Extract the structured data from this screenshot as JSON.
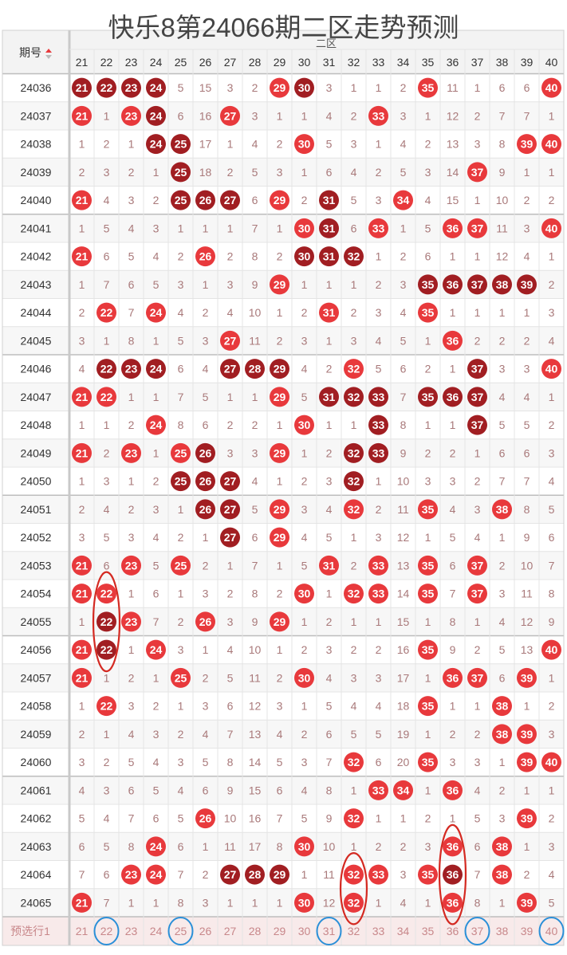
{
  "title": "快乐8第24066期二区走势预测",
  "zone_label": "二区",
  "header": {
    "period_label": "期号",
    "sort_icon": "sort-icon"
  },
  "colors": {
    "hit": "#e8393c",
    "repeat": "#a11e22",
    "miss_text": "#a9797a",
    "mark": "#d42a22",
    "pick": "#2a8fd8",
    "grid": "#e4e4e4"
  },
  "chart_data": {
    "type": "table",
    "columns": [
      21,
      22,
      23,
      24,
      25,
      26,
      27,
      28,
      29,
      30,
      31,
      32,
      33,
      34,
      35,
      36,
      37,
      38,
      39,
      40
    ],
    "rows": [
      {
        "period": "24036",
        "cells": [
          21,
          22,
          23,
          24,
          5,
          15,
          3,
          2,
          29,
          30,
          3,
          1,
          1,
          2,
          35,
          11,
          1,
          6,
          6,
          40
        ],
        "repeat": [
          21,
          22,
          23,
          24,
          30
        ]
      },
      {
        "period": "24037",
        "cells": [
          21,
          1,
          23,
          24,
          6,
          16,
          27,
          3,
          1,
          1,
          4,
          2,
          33,
          3,
          1,
          12,
          2,
          7,
          7,
          1
        ],
        "repeat": [
          24
        ]
      },
      {
        "period": "24038",
        "cells": [
          1,
          2,
          1,
          24,
          25,
          17,
          1,
          4,
          2,
          30,
          5,
          3,
          1,
          4,
          2,
          13,
          3,
          8,
          39,
          40
        ],
        "repeat": [
          24,
          25
        ]
      },
      {
        "period": "24039",
        "cells": [
          2,
          3,
          2,
          1,
          25,
          18,
          2,
          5,
          3,
          1,
          6,
          4,
          2,
          5,
          3,
          14,
          37,
          9,
          1,
          1
        ],
        "repeat": [
          25
        ]
      },
      {
        "period": "24040",
        "cells": [
          21,
          4,
          3,
          2,
          25,
          26,
          27,
          6,
          29,
          2,
          31,
          5,
          3,
          34,
          4,
          15,
          1,
          10,
          2,
          2
        ],
        "repeat": [
          25,
          26,
          27,
          31
        ]
      },
      {
        "period": "24041",
        "cells": [
          1,
          5,
          4,
          3,
          1,
          1,
          1,
          7,
          1,
          30,
          31,
          6,
          33,
          1,
          5,
          36,
          37,
          11,
          3,
          40
        ],
        "repeat": [
          31
        ]
      },
      {
        "period": "24042",
        "cells": [
          21,
          6,
          5,
          4,
          2,
          26,
          2,
          8,
          2,
          30,
          31,
          32,
          1,
          2,
          6,
          1,
          1,
          12,
          4,
          1
        ],
        "repeat": [
          30,
          31,
          32
        ]
      },
      {
        "period": "24043",
        "cells": [
          1,
          7,
          6,
          5,
          3,
          1,
          3,
          9,
          29,
          1,
          1,
          1,
          2,
          3,
          35,
          36,
          37,
          38,
          39,
          2
        ],
        "repeat": [
          35,
          36,
          37,
          38,
          39
        ]
      },
      {
        "period": "24044",
        "cells": [
          2,
          22,
          7,
          24,
          4,
          2,
          4,
          10,
          1,
          2,
          31,
          2,
          3,
          4,
          35,
          1,
          1,
          1,
          1,
          3
        ],
        "repeat": []
      },
      {
        "period": "24045",
        "cells": [
          3,
          1,
          8,
          1,
          5,
          3,
          27,
          11,
          2,
          3,
          1,
          3,
          4,
          5,
          1,
          36,
          2,
          2,
          2,
          4
        ],
        "repeat": []
      },
      {
        "period": "24046",
        "cells": [
          4,
          22,
          23,
          24,
          6,
          4,
          27,
          28,
          29,
          4,
          2,
          32,
          5,
          6,
          2,
          1,
          37,
          3,
          3,
          40
        ],
        "repeat": [
          22,
          23,
          24,
          27,
          28,
          29,
          37
        ]
      },
      {
        "period": "24047",
        "cells": [
          21,
          22,
          1,
          1,
          7,
          5,
          1,
          1,
          29,
          5,
          31,
          32,
          33,
          7,
          35,
          36,
          37,
          4,
          4,
          1
        ],
        "repeat": [
          31,
          32,
          33,
          35,
          36,
          37
        ]
      },
      {
        "period": "24048",
        "cells": [
          1,
          1,
          2,
          24,
          8,
          6,
          2,
          2,
          1,
          30,
          1,
          1,
          33,
          8,
          1,
          1,
          37,
          5,
          5,
          2
        ],
        "repeat": [
          33,
          37
        ]
      },
      {
        "period": "24049",
        "cells": [
          21,
          2,
          23,
          1,
          25,
          26,
          3,
          3,
          29,
          1,
          2,
          32,
          33,
          9,
          2,
          2,
          1,
          6,
          6,
          3
        ],
        "repeat": [
          26,
          32,
          33
        ]
      },
      {
        "period": "24050",
        "cells": [
          1,
          3,
          1,
          2,
          25,
          26,
          27,
          4,
          1,
          2,
          3,
          32,
          1,
          10,
          3,
          3,
          2,
          7,
          7,
          4
        ],
        "repeat": [
          25,
          26,
          27,
          32
        ]
      },
      {
        "period": "24051",
        "cells": [
          2,
          4,
          2,
          3,
          1,
          26,
          27,
          5,
          29,
          3,
          4,
          32,
          2,
          11,
          35,
          4,
          3,
          38,
          8,
          5
        ],
        "repeat": [
          26,
          27
        ]
      },
      {
        "period": "24052",
        "cells": [
          3,
          5,
          3,
          4,
          2,
          1,
          27,
          6,
          29,
          4,
          5,
          1,
          3,
          12,
          1,
          5,
          4,
          1,
          9,
          6
        ],
        "repeat": [
          27
        ]
      },
      {
        "period": "24053",
        "cells": [
          21,
          6,
          23,
          5,
          25,
          2,
          1,
          7,
          1,
          5,
          31,
          2,
          33,
          13,
          35,
          6,
          37,
          2,
          10,
          7
        ],
        "repeat": []
      },
      {
        "period": "24054",
        "cells": [
          21,
          22,
          1,
          6,
          1,
          3,
          2,
          8,
          2,
          30,
          1,
          32,
          33,
          14,
          35,
          7,
          37,
          3,
          11,
          8
        ],
        "repeat": []
      },
      {
        "period": "24055",
        "cells": [
          1,
          22,
          23,
          7,
          2,
          26,
          3,
          9,
          29,
          1,
          2,
          1,
          1,
          15,
          1,
          8,
          1,
          4,
          12,
          9
        ],
        "repeat": [
          22
        ]
      },
      {
        "period": "24056",
        "cells": [
          21,
          22,
          1,
          24,
          3,
          1,
          4,
          10,
          1,
          2,
          3,
          2,
          2,
          16,
          35,
          9,
          2,
          5,
          13,
          40
        ],
        "repeat": [
          22
        ]
      },
      {
        "period": "24057",
        "cells": [
          21,
          1,
          2,
          1,
          25,
          2,
          5,
          11,
          2,
          30,
          4,
          3,
          3,
          17,
          1,
          36,
          37,
          6,
          39,
          1
        ],
        "repeat": []
      },
      {
        "period": "24058",
        "cells": [
          1,
          22,
          3,
          2,
          1,
          3,
          6,
          12,
          3,
          1,
          5,
          4,
          4,
          18,
          35,
          1,
          1,
          38,
          1,
          2
        ],
        "repeat": []
      },
      {
        "period": "24059",
        "cells": [
          2,
          1,
          4,
          3,
          2,
          4,
          7,
          13,
          4,
          2,
          6,
          5,
          5,
          19,
          1,
          2,
          2,
          38,
          39,
          3
        ],
        "repeat": []
      },
      {
        "period": "24060",
        "cells": [
          3,
          2,
          5,
          4,
          3,
          5,
          8,
          14,
          5,
          3,
          7,
          32,
          6,
          20,
          35,
          3,
          3,
          1,
          39,
          40
        ],
        "repeat": []
      },
      {
        "period": "24061",
        "cells": [
          4,
          3,
          6,
          5,
          4,
          6,
          9,
          15,
          6,
          4,
          8,
          1,
          33,
          34,
          1,
          36,
          4,
          2,
          1,
          1
        ],
        "repeat": []
      },
      {
        "period": "24062",
        "cells": [
          5,
          4,
          7,
          6,
          5,
          26,
          10,
          16,
          7,
          5,
          9,
          32,
          1,
          1,
          2,
          1,
          5,
          3,
          39,
          2
        ],
        "repeat": []
      },
      {
        "period": "24063",
        "cells": [
          6,
          5,
          8,
          24,
          6,
          1,
          11,
          17,
          8,
          30,
          10,
          1,
          2,
          2,
          3,
          36,
          6,
          38,
          1,
          3
        ],
        "repeat": []
      },
      {
        "period": "24064",
        "cells": [
          7,
          6,
          23,
          24,
          7,
          2,
          27,
          28,
          29,
          1,
          11,
          32,
          33,
          3,
          35,
          36,
          7,
          38,
          2,
          4
        ],
        "repeat": [
          27,
          28,
          29,
          36
        ]
      },
      {
        "period": "24065",
        "cells": [
          21,
          7,
          1,
          1,
          8,
          3,
          1,
          1,
          1,
          30,
          12,
          32,
          1,
          4,
          1,
          36,
          8,
          1,
          39,
          5
        ],
        "repeat": []
      }
    ],
    "prediction": {
      "label": "预选行1",
      "cells": [
        21,
        22,
        23,
        24,
        25,
        26,
        27,
        28,
        29,
        30,
        31,
        32,
        33,
        34,
        35,
        36,
        37,
        38,
        39,
        40
      ],
      "circled": [
        22,
        25,
        31,
        37,
        40
      ]
    },
    "marked_groups": [
      {
        "column": 22,
        "from": "24054",
        "to": "24056"
      },
      {
        "column": 32,
        "from": "24064",
        "to": "24065"
      },
      {
        "column": 36,
        "from": "24063",
        "to": "24065"
      }
    ]
  }
}
